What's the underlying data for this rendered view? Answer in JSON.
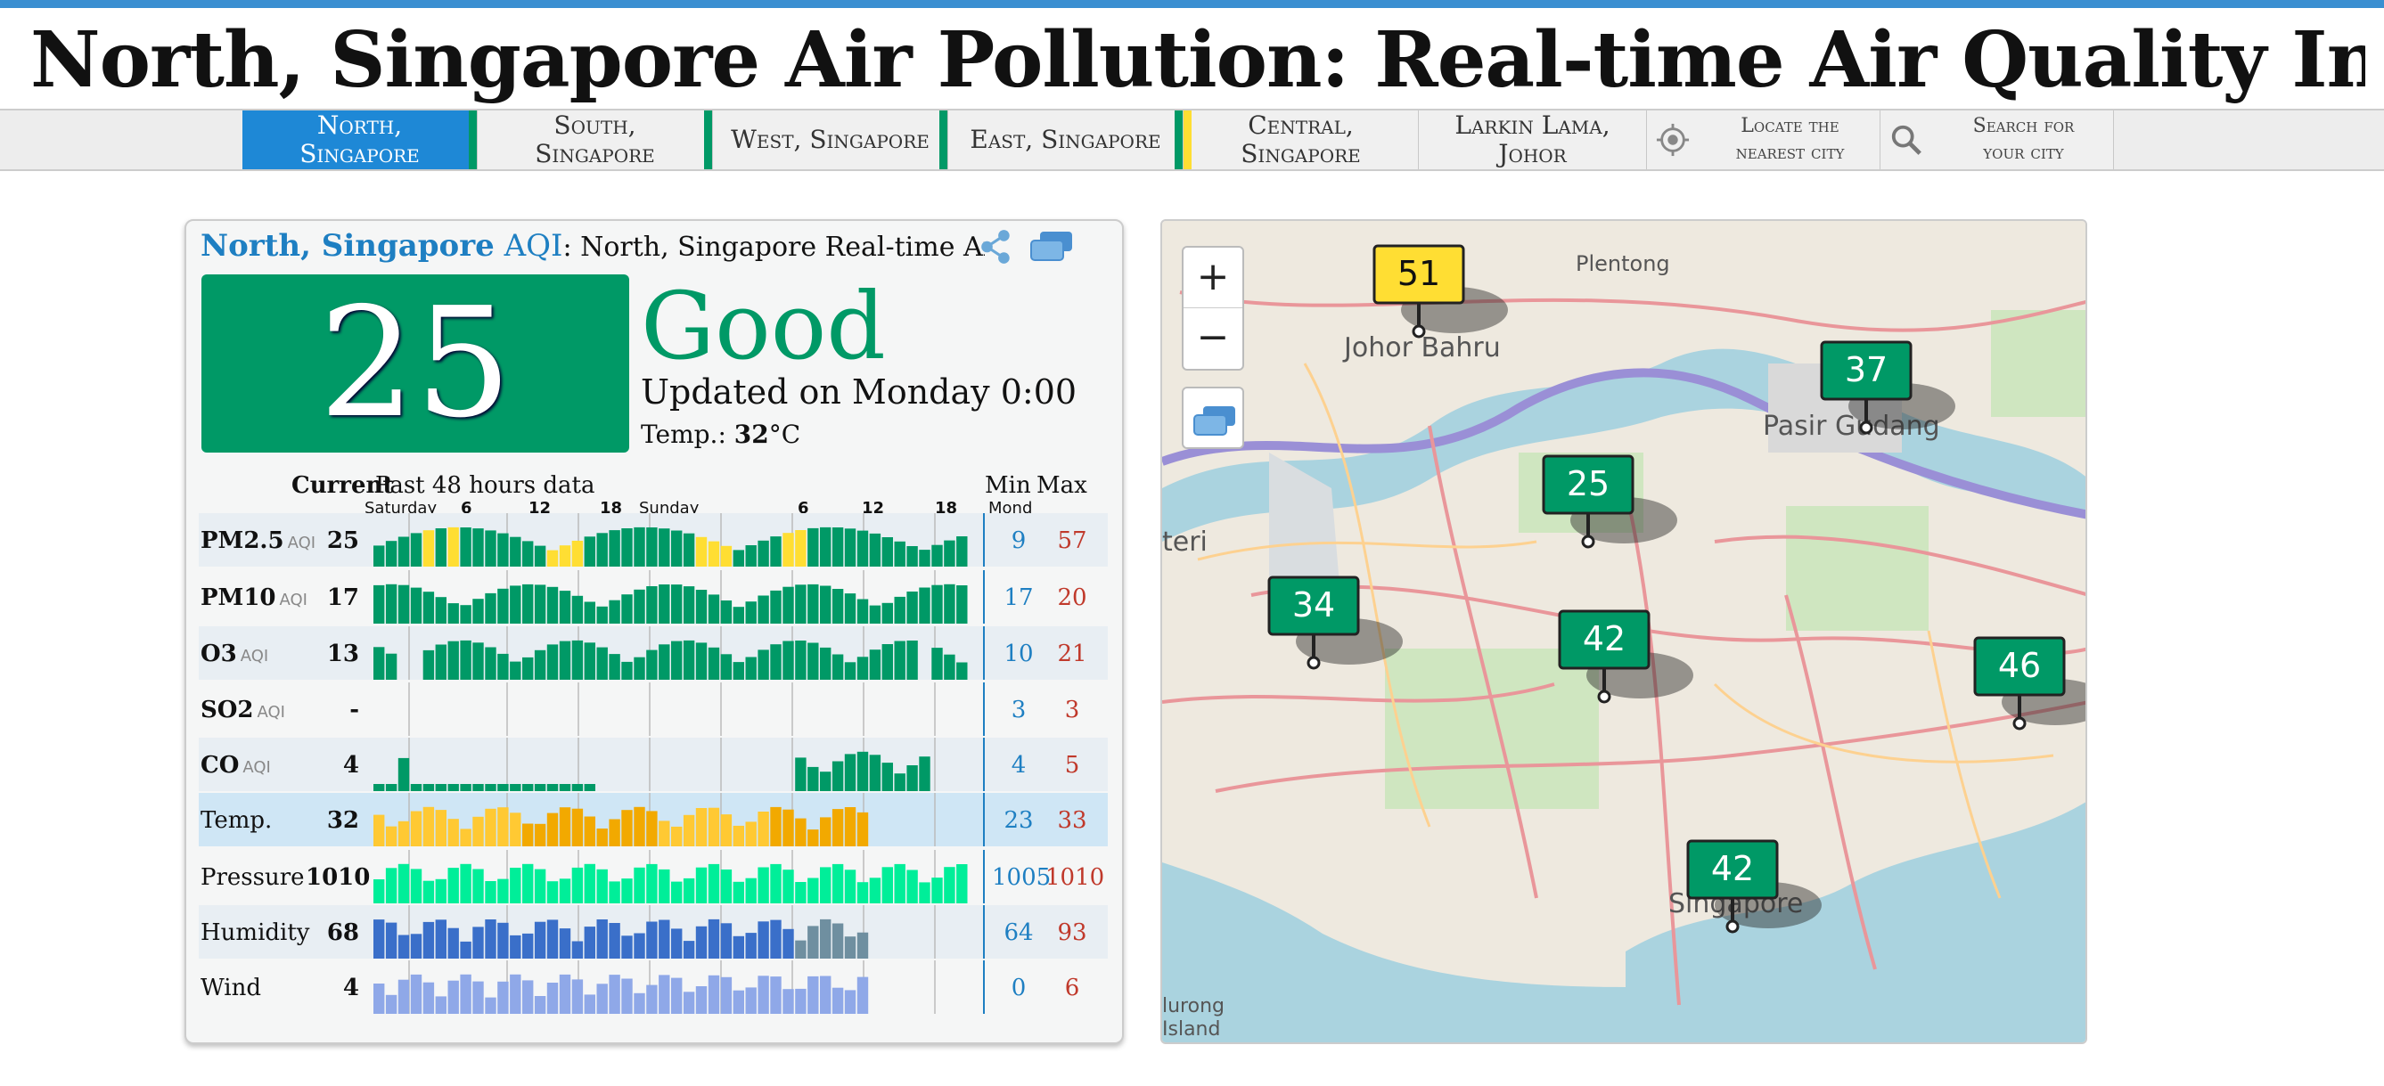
{
  "title": {
    "bold": "North, Singapore",
    "rest": " Air Pollution: Real-time Air Quality Index (AQI)"
  },
  "tabs": [
    {
      "line1": "North,",
      "line2": "Singapore",
      "color": "#009966",
      "active": true
    },
    {
      "line1": "South,",
      "line2": "Singapore",
      "color": "#009966"
    },
    {
      "line1": "West, Singapore",
      "line2": "",
      "color": "#009966"
    },
    {
      "line1": "East, Singapore",
      "line2": "",
      "color": "#009966"
    },
    {
      "line1": "Central,",
      "line2": "Singapore",
      "color": "#009966"
    },
    {
      "line1": "Larkin Lama,",
      "line2": "Johor",
      "color": "#ffde33"
    }
  ],
  "utils": {
    "locate": {
      "line1": "Locate the",
      "line2": "nearest city"
    },
    "search": {
      "line1": "Search for",
      "line2": "your city"
    }
  },
  "card": {
    "city": "North, Singapore",
    "aqi_word": " AQI",
    "subtitle": ": North, Singapore Real-time Air Quali",
    "aqi_value": "25",
    "status": "Good",
    "updated": "Updated on Monday 0:00",
    "temp_prefix": "Temp.: ",
    "temp_value": "32",
    "temp_unit": "°C",
    "headers": {
      "current": "Current",
      "past": "Past 48 hours data",
      "min": "Min",
      "max": "Max"
    },
    "axis_labels": [
      "Saturday",
      "6",
      "12",
      "18",
      "Sunday",
      "6",
      "12",
      "18",
      "Mond"
    ],
    "rows": [
      {
        "name": "PM2.5",
        "tag": "AQI",
        "current": "25",
        "min": "9",
        "max": "57",
        "color": "#009966"
      },
      {
        "name": "PM10",
        "tag": "AQI",
        "current": "17",
        "min": "17",
        "max": "20",
        "color": "#009966"
      },
      {
        "name": "O3",
        "tag": "AQI",
        "current": "13",
        "min": "10",
        "max": "21",
        "color": "#009966"
      },
      {
        "name": "SO2",
        "tag": "AQI",
        "current": "-",
        "min": "3",
        "max": "3",
        "color": "#009966"
      },
      {
        "name": "CO",
        "tag": "AQI",
        "current": "4",
        "min": "4",
        "max": "5",
        "color": "#009966"
      },
      {
        "name": "Temp.",
        "tag": "",
        "current": "32",
        "min": "23",
        "max": "33",
        "color": "#f2a900"
      },
      {
        "name": "Pressure",
        "tag": "",
        "current": "1010",
        "min": "1005",
        "max": "1010",
        "color": "#00ee99"
      },
      {
        "name": "Humidity",
        "tag": "",
        "current": "68",
        "min": "64",
        "max": "93",
        "color": "#3a6fc9"
      },
      {
        "name": "Wind",
        "tag": "",
        "current": "4",
        "min": "0",
        "max": "6",
        "color": "#8fa8e8"
      }
    ]
  },
  "map": {
    "zoom_in": "+",
    "zoom_out": "−",
    "labels": [
      "Johor Bahru",
      "Plentong",
      "Pasir Gudang",
      "Singapore",
      "teri",
      "lurong",
      "Island"
    ],
    "markers": [
      {
        "value": "51",
        "color": "#ffde33",
        "text": "#111"
      },
      {
        "value": "37",
        "color": "#009966",
        "text": "#fff"
      },
      {
        "value": "25",
        "color": "#009966",
        "text": "#fff"
      },
      {
        "value": "34",
        "color": "#009966",
        "text": "#fff"
      },
      {
        "value": "42",
        "color": "#009966",
        "text": "#fff"
      },
      {
        "value": "46",
        "color": "#009966",
        "text": "#fff"
      },
      {
        "value": "42",
        "color": "#009966",
        "text": "#fff"
      }
    ]
  }
}
